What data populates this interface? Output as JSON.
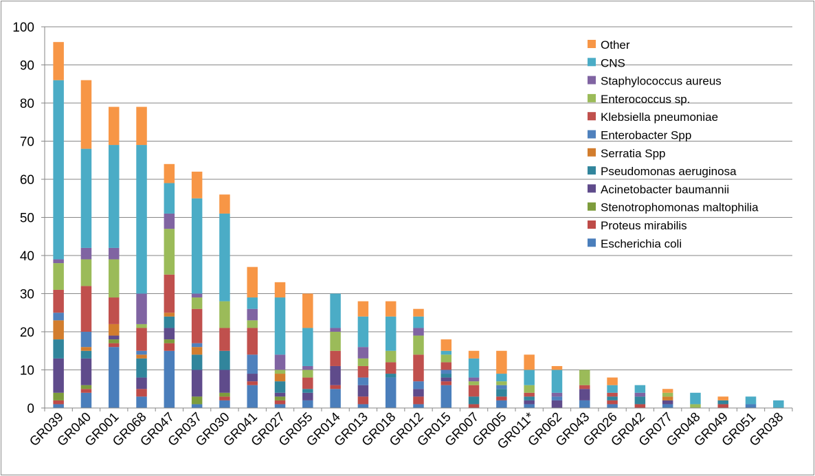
{
  "chart_data": {
    "type": "bar",
    "stacked": true,
    "title": "",
    "xlabel": "",
    "ylabel": "",
    "ylim": [
      0,
      100
    ],
    "yticks": [
      0,
      10,
      20,
      30,
      40,
      50,
      60,
      70,
      80,
      90,
      100
    ],
    "grid": "horizontal",
    "legend_position": "top-right",
    "categories": [
      "GR039",
      "GR040",
      "GR001",
      "GR068",
      "GR047",
      "GR037",
      "GR030",
      "GR041",
      "GR027",
      "GR055",
      "GR014",
      "GR013",
      "GR018",
      "GR012",
      "GR015",
      "GR007",
      "GR005",
      "GR011*",
      "GR062",
      "GR043",
      "GR026",
      "GR042",
      "GR077",
      "GR048",
      "GR049",
      "GR051",
      "GR038"
    ],
    "series": [
      {
        "name": "Escherichia coli",
        "color": "#4A7EBB",
        "values": [
          1,
          4,
          16,
          3,
          15,
          1,
          2,
          6,
          1,
          2,
          5,
          1,
          8,
          1,
          6,
          0,
          2,
          1,
          0,
          2,
          1,
          0,
          1,
          0,
          0,
          1,
          0
        ]
      },
      {
        "name": "Proteus mirabilis",
        "color": "#BE4B48",
        "values": [
          1,
          1,
          1,
          2,
          2,
          0,
          1,
          1,
          1,
          0,
          1,
          2,
          0,
          2,
          1,
          1,
          1,
          0,
          0,
          0,
          1,
          1,
          0,
          0,
          1,
          0,
          0
        ]
      },
      {
        "name": "Stenotrophomonas maltophilia",
        "color": "#7D9C3C",
        "values": [
          2,
          1,
          1,
          0,
          1,
          2,
          1,
          0,
          1,
          0,
          0,
          0,
          0,
          0,
          0,
          0,
          0,
          0,
          0,
          0,
          0,
          0,
          0,
          0,
          0,
          0,
          0
        ]
      },
      {
        "name": "Acinetobacter baumannii",
        "color": "#5F4B8B",
        "values": [
          9,
          7,
          1,
          3,
          3,
          7,
          6,
          2,
          1,
          2,
          5,
          3,
          0,
          2,
          1,
          0,
          0,
          1,
          2,
          3,
          0,
          0,
          1,
          0,
          0,
          0,
          0
        ]
      },
      {
        "name": "Pseudomonas aeruginosa",
        "color": "#31859C",
        "values": [
          5,
          2,
          0,
          5,
          3,
          4,
          5,
          0,
          3,
          1,
          0,
          0,
          1,
          0,
          1,
          2,
          2,
          1,
          0,
          0,
          1,
          2,
          0,
          0,
          1,
          0,
          0
        ]
      },
      {
        "name": "Serratia Spp",
        "color": "#D27D2E",
        "values": [
          5,
          1,
          3,
          1,
          1,
          2,
          0,
          0,
          2,
          0,
          0,
          0,
          0,
          0,
          0,
          0,
          0,
          0,
          0,
          0,
          0,
          0,
          1,
          0,
          0,
          0,
          0
        ]
      },
      {
        "name": "Enterobacter Spp",
        "color": "#4F81BD",
        "values": [
          2,
          4,
          0,
          1,
          0,
          1,
          0,
          5,
          0,
          0,
          0,
          2,
          0,
          2,
          1,
          0,
          1,
          0,
          1,
          0,
          0,
          0,
          0,
          0,
          0,
          0,
          0
        ]
      },
      {
        "name": "Klebsiella pneumoniae",
        "color": "#C0504D",
        "values": [
          6,
          12,
          7,
          6,
          10,
          9,
          6,
          7,
          0,
          3,
          4,
          3,
          3,
          7,
          2,
          3,
          0,
          1,
          0,
          1,
          1,
          0,
          0,
          0,
          0,
          0,
          0
        ]
      },
      {
        "name": "Enterococcus sp.",
        "color": "#9BBB59",
        "values": [
          7,
          7,
          10,
          1,
          12,
          3,
          7,
          2,
          1,
          2,
          5,
          2,
          3,
          5,
          2,
          1,
          1,
          2,
          0,
          4,
          0,
          0,
          1,
          1,
          0,
          0,
          0
        ]
      },
      {
        "name": "Staphylococcus aureus",
        "color": "#8064A2",
        "values": [
          1,
          3,
          3,
          8,
          4,
          1,
          0,
          3,
          4,
          1,
          1,
          3,
          0,
          2,
          0,
          1,
          0,
          0,
          1,
          0,
          0,
          1,
          0,
          0,
          0,
          0,
          0
        ]
      },
      {
        "name": "CNS",
        "color": "#4BACC6",
        "values": [
          47,
          26,
          27,
          39,
          8,
          25,
          23,
          3,
          15,
          10,
          9,
          8,
          9,
          3,
          1,
          5,
          2,
          4,
          6,
          0,
          2,
          2,
          0,
          3,
          0,
          2,
          2
        ]
      },
      {
        "name": "Other",
        "color": "#F79646",
        "values": [
          10,
          18,
          10,
          10,
          5,
          7,
          5,
          8,
          4,
          9,
          0,
          4,
          4,
          2,
          3,
          2,
          6,
          4,
          1,
          0,
          2,
          0,
          1,
          0,
          1,
          0,
          0
        ]
      }
    ]
  }
}
